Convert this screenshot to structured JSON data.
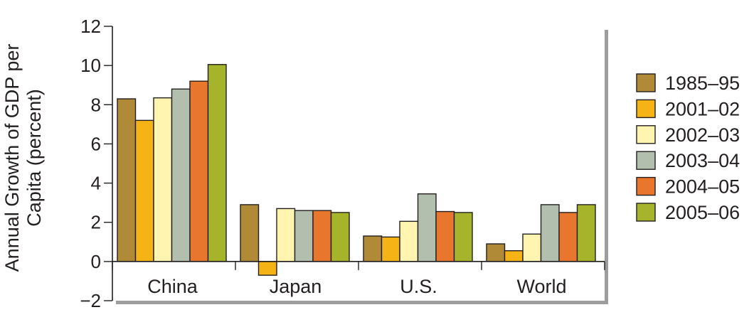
{
  "chart_data": {
    "type": "bar",
    "title": "",
    "ylabel_lines": [
      "Annual Growth of GDP per",
      "Capita (percent)"
    ],
    "xlabel": "",
    "ylim": [
      -2,
      12
    ],
    "yticks": [
      12,
      10,
      8,
      6,
      4,
      2,
      0,
      -2
    ],
    "ytick_labels": [
      "12",
      "10",
      "8",
      "6",
      "4",
      "2",
      "0",
      "−2"
    ],
    "categories": [
      "China",
      "Japan",
      "U.S.",
      "World"
    ],
    "grid": false,
    "legend_position": "right",
    "series": [
      {
        "name": "1985–95",
        "color": "#b08a37",
        "values": [
          8.3,
          2.9,
          1.3,
          0.9
        ]
      },
      {
        "name": "2001–02",
        "color": "#f5b316",
        "values": [
          7.2,
          -0.7,
          1.25,
          0.55
        ]
      },
      {
        "name": "2002–03",
        "color": "#fff5b0",
        "values": [
          8.35,
          2.7,
          2.05,
          1.4
        ]
      },
      {
        "name": "2003–04",
        "color": "#b2bfae",
        "values": [
          8.8,
          2.6,
          3.45,
          2.9
        ]
      },
      {
        "name": "2004–05",
        "color": "#e8762d",
        "values": [
          9.2,
          2.6,
          2.55,
          2.5
        ]
      },
      {
        "name": "2005–06",
        "color": "#a6b42b",
        "values": [
          10.05,
          2.5,
          2.5,
          2.9
        ]
      }
    ]
  }
}
